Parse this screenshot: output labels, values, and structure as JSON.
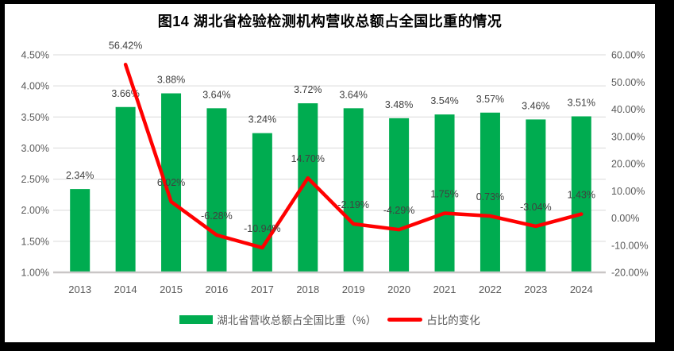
{
  "title": "图14 湖北省检验检测机构营收总额占全国比重的情况",
  "colors": {
    "bar": "#00AC50",
    "line": "#FF0000",
    "grid": "#D9D9D9",
    "axis_line": "#C9C6C6",
    "axis_text": "#595959",
    "data_label_text": "#404040",
    "frame": "#000000",
    "background": "#FFFFFF"
  },
  "legend": {
    "items": [
      {
        "label": "湖北省营收总额占全国比重（%）",
        "swatch": "bar"
      },
      {
        "label": "占比的变化",
        "swatch": "line"
      }
    ]
  },
  "chart_data": {
    "type": "bar+line combo",
    "title": "图14 湖北省检验检测机构营收总额占全国比重的情况",
    "categories": [
      "2013",
      "2014",
      "2015",
      "2016",
      "2017",
      "2018",
      "2019",
      "2020",
      "2021",
      "2022",
      "2023",
      "2024"
    ],
    "series": [
      {
        "name": "湖北省营收总额占全国比重（%）",
        "type": "bar",
        "axis": "left",
        "values": [
          2.34,
          3.66,
          3.88,
          3.64,
          3.24,
          3.72,
          3.64,
          3.48,
          3.54,
          3.57,
          3.46,
          3.51
        ],
        "labels": [
          "2.34%",
          "3.66%",
          "3.88%",
          "3.64%",
          "3.24%",
          "3.72%",
          "3.64%",
          "3.48%",
          "3.54%",
          "3.57%",
          "3.46%",
          "3.51%"
        ]
      },
      {
        "name": "占比的变化",
        "type": "line",
        "axis": "right",
        "values": [
          null,
          56.42,
          6.02,
          -6.28,
          -10.94,
          14.7,
          -2.19,
          -4.29,
          1.75,
          0.73,
          -3.04,
          1.43
        ],
        "labels": [
          "",
          "56.42%",
          "6.02%",
          "-6.28%",
          "-10.94%",
          "14.70%",
          "-2.19%",
          "-4.29%",
          "1.75%",
          "0.73%",
          "-3.04%",
          "1.43%"
        ]
      }
    ],
    "left_axis": {
      "min": 1.0,
      "max": 4.5,
      "step": 0.5,
      "ticks": [
        "4.50%",
        "4.00%",
        "3.50%",
        "3.00%",
        "2.50%",
        "2.00%",
        "1.50%",
        "1.00%"
      ]
    },
    "right_axis": {
      "min": -20,
      "max": 60,
      "step": 10,
      "ticks": [
        "60.00%",
        "50.00%",
        "40.00%",
        "30.00%",
        "20.00%",
        "10.00%",
        "0.00%",
        "-10.00%",
        "-20.00%"
      ]
    },
    "grid": "horizontal",
    "legend_position": "bottom"
  }
}
